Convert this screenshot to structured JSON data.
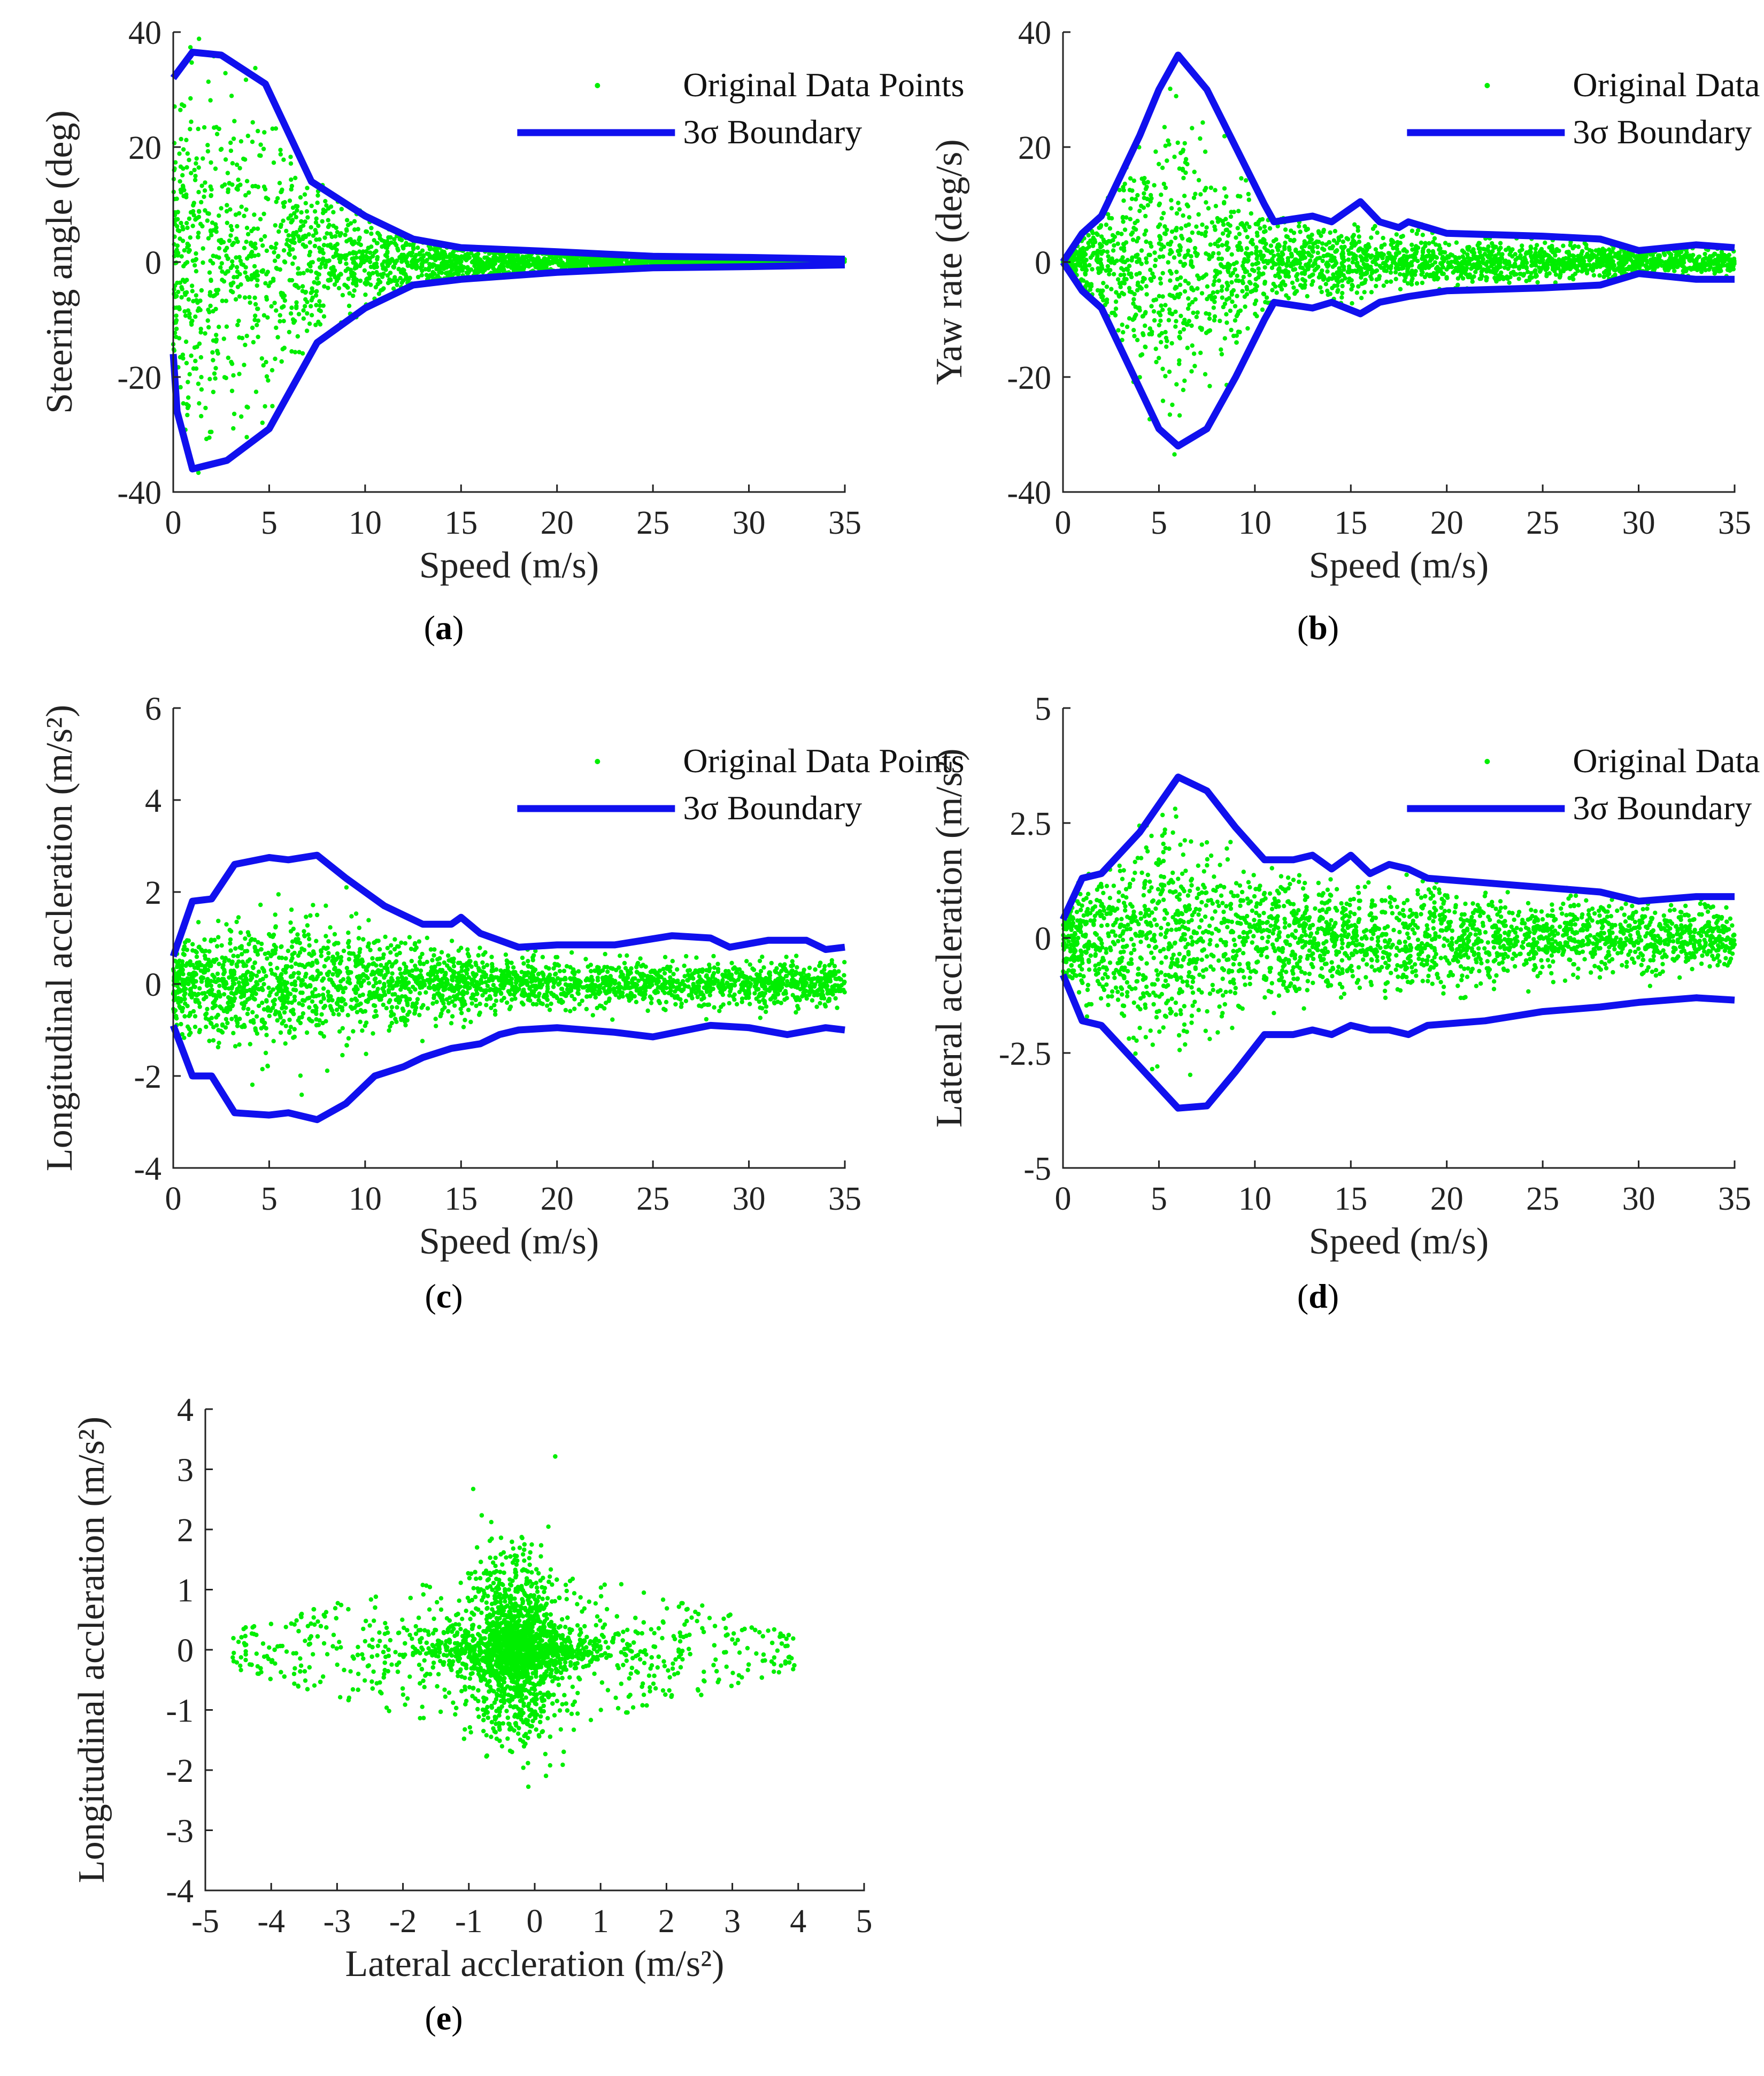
{
  "colors": {
    "points": "#00ee00",
    "boundary": "#1010ee",
    "axis": "#222222"
  },
  "legend_labels": {
    "points": "Original Data Points",
    "boundary": "3σ Boundary"
  },
  "chart_data": [
    {
      "id": "a",
      "type": "scatter",
      "caption": "a",
      "xlabel": "Speed (m/s)",
      "ylabel": "Steering angle (deg)",
      "xlim": [
        0,
        35
      ],
      "ylim": [
        -40,
        40
      ],
      "xticks": [
        0,
        5,
        10,
        15,
        20,
        25,
        30,
        35
      ],
      "yticks": [
        -40,
        -20,
        0,
        20,
        40
      ],
      "legend": true,
      "grid": false,
      "points_description": "dense cloud concentrated near 0 deg, widening at low speed",
      "boundary_upper": [
        [
          0,
          32
        ],
        [
          1,
          36.5
        ],
        [
          2.5,
          36
        ],
        [
          4.8,
          31
        ],
        [
          7.2,
          14
        ],
        [
          10,
          8
        ],
        [
          12.5,
          4
        ],
        [
          15,
          2.5
        ],
        [
          20,
          1.8
        ],
        [
          25,
          1
        ],
        [
          30,
          0.8
        ],
        [
          35,
          0.5
        ]
      ],
      "boundary_lower": [
        [
          0,
          -16
        ],
        [
          0.2,
          -26
        ],
        [
          1,
          -36
        ],
        [
          2.8,
          -34.5
        ],
        [
          5,
          -29
        ],
        [
          7.5,
          -14
        ],
        [
          10,
          -8
        ],
        [
          12.5,
          -4
        ],
        [
          15,
          -3
        ],
        [
          20,
          -1.8
        ],
        [
          25,
          -1
        ],
        [
          30,
          -0.8
        ],
        [
          35,
          -0.5
        ]
      ],
      "spread": [
        [
          0,
          18
        ],
        [
          2,
          22
        ],
        [
          5,
          16
        ],
        [
          8,
          8
        ],
        [
          10,
          4.5
        ],
        [
          15,
          2
        ],
        [
          20,
          1.3
        ],
        [
          25,
          0.8
        ],
        [
          30,
          0.6
        ],
        [
          35,
          0.5
        ]
      ]
    },
    {
      "id": "b",
      "type": "scatter",
      "caption": "b",
      "xlabel": "Speed (m/s)",
      "ylabel": "Yaw rate (deg/s)",
      "xlim": [
        0,
        35
      ],
      "ylim": [
        -40,
        40
      ],
      "xticks": [
        0,
        5,
        10,
        15,
        20,
        25,
        30,
        35
      ],
      "yticks": [
        -40,
        -20,
        0,
        20,
        40
      ],
      "legend": true,
      "grid": false,
      "boundary_upper": [
        [
          0,
          0
        ],
        [
          1,
          5
        ],
        [
          2,
          8
        ],
        [
          3,
          15
        ],
        [
          4,
          22
        ],
        [
          5,
          30
        ],
        [
          6,
          36
        ],
        [
          7.5,
          30
        ],
        [
          9,
          20
        ],
        [
          10.5,
          10
        ],
        [
          11,
          7
        ],
        [
          13,
          8
        ],
        [
          14,
          7
        ],
        [
          15.5,
          10.5
        ],
        [
          16.5,
          7
        ],
        [
          17.5,
          6
        ],
        [
          18,
          7
        ],
        [
          20,
          5
        ],
        [
          25,
          4.5
        ],
        [
          28,
          4
        ],
        [
          30,
          2
        ],
        [
          33,
          3
        ],
        [
          35,
          2.5
        ]
      ],
      "boundary_lower": [
        [
          0,
          0
        ],
        [
          1,
          -5
        ],
        [
          2,
          -8
        ],
        [
          3,
          -15
        ],
        [
          4,
          -22
        ],
        [
          5,
          -29
        ],
        [
          6,
          -32
        ],
        [
          7.5,
          -29
        ],
        [
          9,
          -20
        ],
        [
          10.5,
          -10
        ],
        [
          11,
          -7
        ],
        [
          13,
          -8
        ],
        [
          14,
          -7
        ],
        [
          15.5,
          -9
        ],
        [
          16.5,
          -7
        ],
        [
          18,
          -6
        ],
        [
          20,
          -5
        ],
        [
          25,
          -4.5
        ],
        [
          28,
          -4
        ],
        [
          30,
          -2
        ],
        [
          33,
          -3
        ],
        [
          35,
          -3
        ]
      ],
      "spread": [
        [
          0,
          2
        ],
        [
          2,
          6
        ],
        [
          4,
          14
        ],
        [
          6,
          16
        ],
        [
          8,
          12
        ],
        [
          10,
          6
        ],
        [
          12,
          4
        ],
        [
          15,
          4
        ],
        [
          20,
          2.5
        ],
        [
          25,
          2
        ],
        [
          30,
          1.5
        ],
        [
          35,
          1.3
        ]
      ]
    },
    {
      "id": "c",
      "type": "scatter",
      "caption": "c",
      "xlabel": "Speed (m/s)",
      "ylabel": "Longitudinal accleration (m/s²)",
      "xlim": [
        0,
        35
      ],
      "ylim": [
        -4,
        6
      ],
      "xticks": [
        0,
        5,
        10,
        15,
        20,
        25,
        30,
        35
      ],
      "yticks": [
        -4,
        -2,
        0,
        2,
        4,
        6
      ],
      "legend": true,
      "grid": false,
      "boundary_upper": [
        [
          0,
          0.6
        ],
        [
          1,
          1.8
        ],
        [
          2,
          1.85
        ],
        [
          3.2,
          2.6
        ],
        [
          5,
          2.75
        ],
        [
          6,
          2.7
        ],
        [
          7.5,
          2.8
        ],
        [
          9,
          2.3
        ],
        [
          11,
          1.7
        ],
        [
          13,
          1.3
        ],
        [
          14.5,
          1.3
        ],
        [
          15,
          1.45
        ],
        [
          16,
          1.1
        ],
        [
          17,
          0.95
        ],
        [
          18,
          0.8
        ],
        [
          20,
          0.85
        ],
        [
          23,
          0.85
        ],
        [
          26,
          1.05
        ],
        [
          28,
          1.0
        ],
        [
          29,
          0.8
        ],
        [
          31,
          0.95
        ],
        [
          33,
          0.95
        ],
        [
          34,
          0.75
        ],
        [
          35,
          0.8
        ]
      ],
      "boundary_lower": [
        [
          0,
          -0.9
        ],
        [
          1,
          -2.0
        ],
        [
          2,
          -2.0
        ],
        [
          3.2,
          -2.8
        ],
        [
          5,
          -2.85
        ],
        [
          6,
          -2.8
        ],
        [
          7.5,
          -2.95
        ],
        [
          9,
          -2.6
        ],
        [
          10.5,
          -2.0
        ],
        [
          12,
          -1.8
        ],
        [
          13,
          -1.6
        ],
        [
          14.5,
          -1.4
        ],
        [
          16,
          -1.3
        ],
        [
          17,
          -1.1
        ],
        [
          18,
          -1.0
        ],
        [
          20,
          -0.95
        ],
        [
          23,
          -1.05
        ],
        [
          25,
          -1.15
        ],
        [
          28,
          -0.9
        ],
        [
          30,
          -0.95
        ],
        [
          32,
          -1.1
        ],
        [
          34,
          -0.95
        ],
        [
          35,
          -1.0
        ]
      ],
      "spread": [
        [
          0,
          0.6
        ],
        [
          2,
          0.9
        ],
        [
          5,
          0.95
        ],
        [
          8,
          0.95
        ],
        [
          11,
          0.65
        ],
        [
          14,
          0.5
        ],
        [
          18,
          0.32
        ],
        [
          22,
          0.3
        ],
        [
          26,
          0.35
        ],
        [
          30,
          0.32
        ],
        [
          35,
          0.3
        ]
      ]
    },
    {
      "id": "d",
      "type": "scatter",
      "caption": "d",
      "xlabel": "Speed (m/s)",
      "ylabel": "Lateral accleration (m/s²)",
      "xlim": [
        0,
        35
      ],
      "ylim": [
        -5,
        5
      ],
      "xticks": [
        0,
        5,
        10,
        15,
        20,
        25,
        30,
        35
      ],
      "yticks": [
        -5,
        -2.5,
        0,
        2.5,
        5
      ],
      "legend": true,
      "grid": false,
      "boundary_upper": [
        [
          0,
          0.4
        ],
        [
          1,
          1.3
        ],
        [
          2,
          1.4
        ],
        [
          4,
          2.3
        ],
        [
          6,
          3.5
        ],
        [
          7.5,
          3.2
        ],
        [
          9,
          2.4
        ],
        [
          10.5,
          1.7
        ],
        [
          12,
          1.7
        ],
        [
          13,
          1.8
        ],
        [
          14,
          1.5
        ],
        [
          15,
          1.8
        ],
        [
          16,
          1.4
        ],
        [
          17,
          1.6
        ],
        [
          18,
          1.5
        ],
        [
          19,
          1.3
        ],
        [
          22,
          1.2
        ],
        [
          25,
          1.1
        ],
        [
          28,
          1.0
        ],
        [
          30,
          0.8
        ],
        [
          33,
          0.9
        ],
        [
          35,
          0.9
        ]
      ],
      "boundary_lower": [
        [
          0,
          -0.8
        ],
        [
          1,
          -1.8
        ],
        [
          2,
          -1.9
        ],
        [
          4,
          -2.8
        ],
        [
          6,
          -3.7
        ],
        [
          7.5,
          -3.65
        ],
        [
          9,
          -2.9
        ],
        [
          10.5,
          -2.1
        ],
        [
          12,
          -2.1
        ],
        [
          13,
          -2.0
        ],
        [
          14,
          -2.1
        ],
        [
          15,
          -1.9
        ],
        [
          16,
          -2.0
        ],
        [
          17,
          -2.0
        ],
        [
          18,
          -2.1
        ],
        [
          19,
          -1.9
        ],
        [
          22,
          -1.8
        ],
        [
          25,
          -1.6
        ],
        [
          28,
          -1.5
        ],
        [
          30,
          -1.4
        ],
        [
          33,
          -1.3
        ],
        [
          35,
          -1.35
        ]
      ],
      "spread": [
        [
          0,
          0.8
        ],
        [
          2,
          1.1
        ],
        [
          5,
          1.5
        ],
        [
          7,
          1.4
        ],
        [
          10,
          0.9
        ],
        [
          13,
          0.75
        ],
        [
          16,
          0.7
        ],
        [
          18,
          0.8
        ],
        [
          22,
          0.55
        ],
        [
          26,
          0.5
        ],
        [
          30,
          0.45
        ],
        [
          35,
          0.45
        ]
      ]
    },
    {
      "id": "e",
      "type": "scatter",
      "caption": "e",
      "xlabel": "Lateral accleration (m/s²)",
      "ylabel": "Longitudinal accleration (m/s²)",
      "xlim": [
        -5,
        5
      ],
      "ylim": [
        -4,
        4
      ],
      "xticks": [
        -5,
        -4,
        -3,
        -2,
        -1,
        0,
        1,
        2,
        3,
        4,
        5
      ],
      "yticks": [
        -4,
        -3,
        -2,
        -1,
        0,
        1,
        2,
        3,
        4
      ],
      "legend": false,
      "grid": false,
      "points_description": "diamond-shaped cloud centered near (-0.3, 0), lateral range about -4.8 to 4.0, longitudinal range about -3.4 to 3.4"
    }
  ]
}
